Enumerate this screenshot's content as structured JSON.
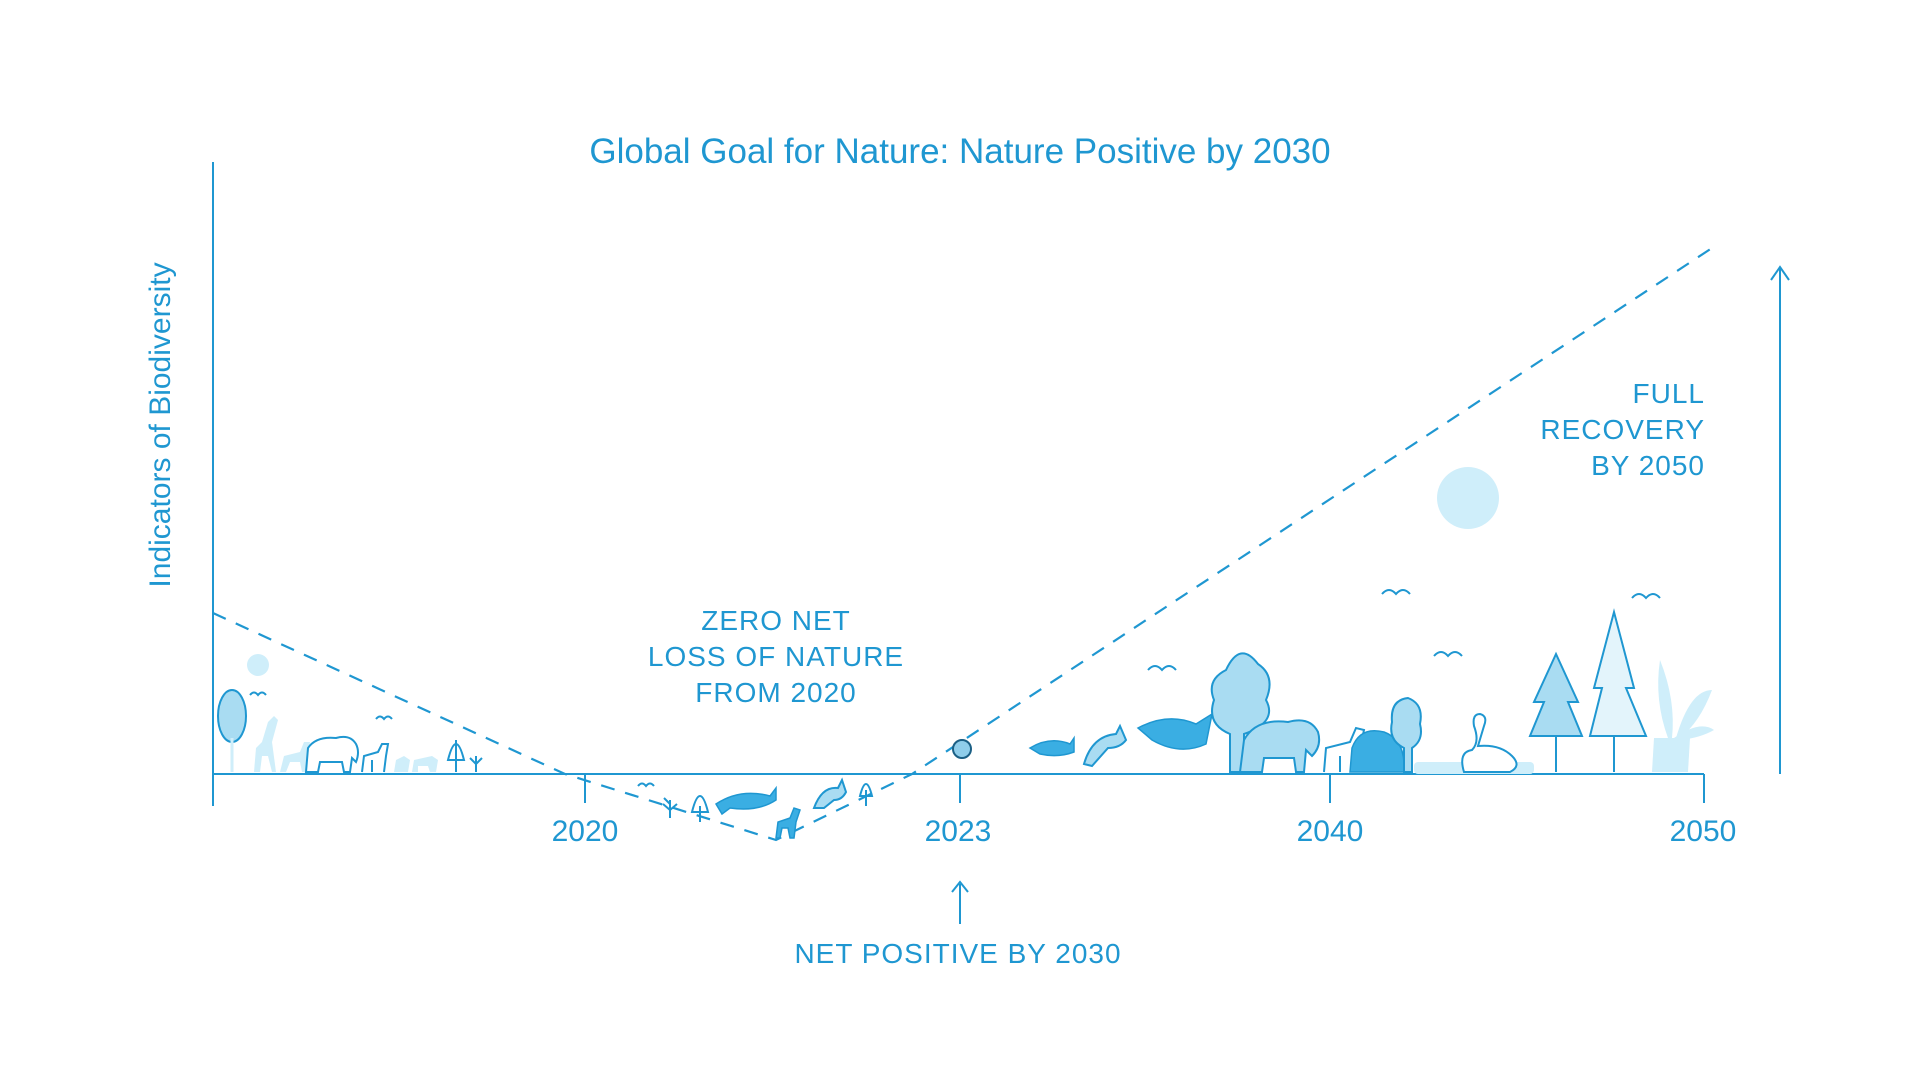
{
  "chart_data": {
    "type": "line",
    "title": "Global Goal for Nature: Nature Positive by 2030",
    "ylabel": "Indicators of Biodiversity",
    "xlabel": "",
    "x_ticks": [
      "2020",
      "2023",
      "2040",
      "2050"
    ],
    "annotations": {
      "zero_net": [
        "ZERO NET",
        "LOSS OF NATURE",
        "FROM 2020"
      ],
      "net_positive": "NET POSITIVE BY 2030",
      "full_recovery": [
        "FULL",
        "RECOVERY",
        "BY 2050"
      ]
    },
    "grid": false,
    "legend": "none",
    "colors": {
      "primary": "#1f97d1",
      "light": "#a9dcf2",
      "pale": "#cfeefa",
      "marker": "#8fcdea"
    },
    "icons": [
      "tree-icon",
      "giraffe-icon",
      "elephant-icon",
      "deer-icon",
      "bird-icon",
      "shark-icon",
      "kangaroo-icon",
      "swan-icon",
      "lion-icon",
      "plant-icon",
      "sun-icon"
    ]
  }
}
